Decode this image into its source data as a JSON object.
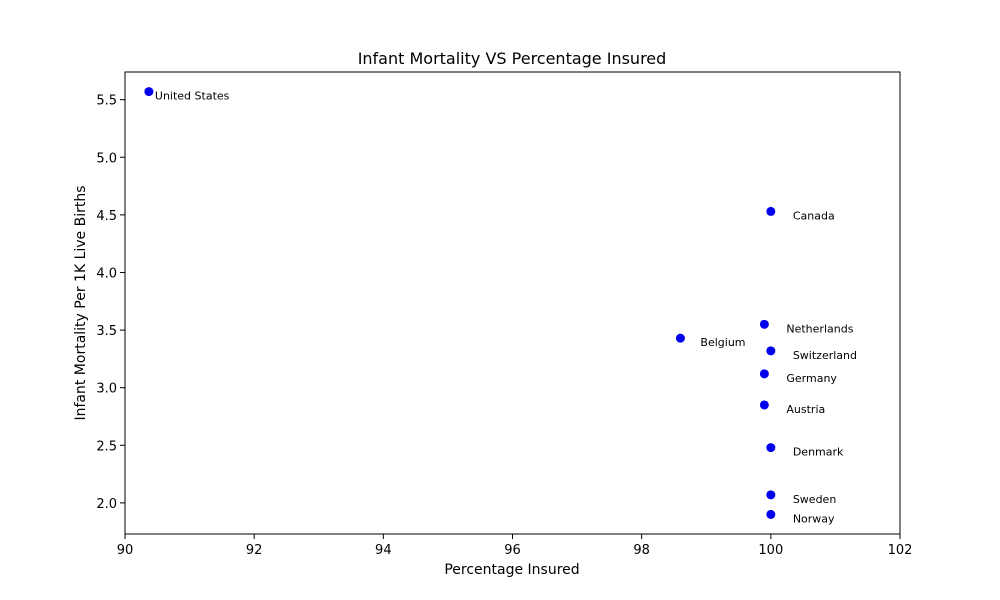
{
  "chart_data": {
    "type": "scatter",
    "title": "Infant Mortality VS Percentage Insured",
    "xlabel": "Percentage Insured",
    "ylabel": "Infant Mortality Per 1K Live Births",
    "xlim": [
      90,
      102
    ],
    "ylim": [
      1.73,
      5.74
    ],
    "xticks": [
      90,
      92,
      94,
      96,
      98,
      100,
      102
    ],
    "yticks": [
      2.0,
      2.5,
      3.0,
      3.5,
      4.0,
      4.5,
      5.0,
      5.5
    ],
    "xtick_labels": [
      "90",
      "92",
      "94",
      "96",
      "98",
      "100",
      "102"
    ],
    "ytick_labels": [
      "2.0",
      "2.5",
      "3.0",
      "3.5",
      "4.0",
      "4.5",
      "5.0",
      "5.5"
    ],
    "grid": false,
    "marker_color": "#0000ee",
    "points": [
      {
        "label": "United States",
        "x": 90.37,
        "y": 5.57
      },
      {
        "label": "Canada",
        "x": 100.0,
        "y": 4.53
      },
      {
        "label": "Netherlands",
        "x": 99.9,
        "y": 3.55
      },
      {
        "label": "Belgium",
        "x": 98.6,
        "y": 3.43
      },
      {
        "label": "Switzerland",
        "x": 100.0,
        "y": 3.32
      },
      {
        "label": "Germany",
        "x": 99.9,
        "y": 3.12
      },
      {
        "label": "Austria",
        "x": 99.9,
        "y": 2.85
      },
      {
        "label": "Denmark",
        "x": 100.0,
        "y": 2.48
      },
      {
        "label": "Sweden",
        "x": 100.0,
        "y": 2.07
      },
      {
        "label": "Norway",
        "x": 100.0,
        "y": 1.9
      }
    ]
  }
}
